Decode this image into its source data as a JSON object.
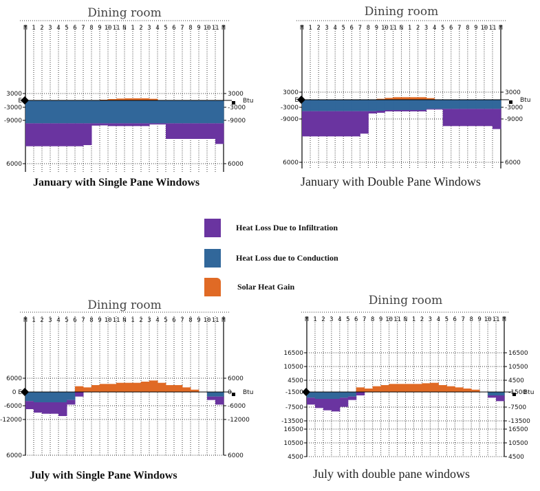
{
  "colors": {
    "infiltration": "#6a34a0",
    "conduction": "#31679a",
    "solar": "#e06a25",
    "axis": "#000000",
    "grid": "#333333"
  },
  "legend": {
    "items": [
      {
        "key": "infiltration",
        "label": "Heat Loss Due to Infiltration"
      },
      {
        "key": "conduction",
        "label": "Heat Loss due to Conduction"
      },
      {
        "key": "solar",
        "label": "Solar Heat Gain"
      }
    ]
  },
  "chart_data": [
    {
      "type": "bar",
      "stacked": true,
      "title": "Dining room",
      "caption": "January with Single Pane Windows",
      "categories": [
        "M",
        "1",
        "2",
        "3",
        "4",
        "5",
        "6",
        "7",
        "8",
        "9",
        "10",
        "11",
        "N",
        "1",
        "2",
        "3",
        "4",
        "5",
        "6",
        "7",
        "8",
        "9",
        "10",
        "11"
      ],
      "x_tick_labels": [
        "M",
        "1",
        "2",
        "3",
        "4",
        "5",
        "6",
        "7",
        "8",
        "9",
        "10",
        "11",
        "N",
        "1",
        "2",
        "3",
        "4",
        "5",
        "6",
        "7",
        "8",
        "9",
        "10",
        "11",
        "M"
      ],
      "y_tick_labels_left": [
        "3000",
        "E",
        "-3000",
        "-9000",
        "6000"
      ],
      "y_tick_labels_right": [
        "3000",
        "-3000",
        "-9000",
        "6000"
      ],
      "unit_label": "Btu",
      "ylim": [
        -21000,
        3000
      ],
      "series": [
        {
          "name": "Solar Heat Gain",
          "key": "solar",
          "values": [
            0,
            0,
            0,
            0,
            0,
            0,
            0,
            0,
            0,
            300,
            600,
            800,
            900,
            900,
            900,
            700,
            0,
            0,
            0,
            0,
            0,
            0,
            0,
            0
          ]
        },
        {
          "name": "Heat Loss due to Conduction",
          "key": "conduction",
          "values": [
            -10000,
            -10000,
            -10000,
            -10000,
            -10000,
            -10000,
            -10000,
            -10000,
            -10000,
            -10000,
            -10000,
            -10000,
            -10000,
            -10000,
            -10000,
            -10000,
            -10000,
            -10000,
            -10000,
            -10000,
            -10000,
            -10000,
            -10000,
            -10000
          ]
        },
        {
          "name": "Heat Loss Due to Infiltration",
          "key": "infiltration",
          "values": [
            -10000,
            -10000,
            -10000,
            -10000,
            -10000,
            -10000,
            -10000,
            -9500,
            -1000,
            -900,
            -1200,
            -1200,
            -1200,
            -1200,
            -1200,
            -500,
            -500,
            -6800,
            -6800,
            -6800,
            -6800,
            -6800,
            -6800,
            -9000
          ]
        }
      ]
    },
    {
      "type": "bar",
      "stacked": true,
      "title": "Dining room",
      "caption": "January with Double Pane Windows",
      "categories": [
        "M",
        "1",
        "2",
        "3",
        "4",
        "5",
        "6",
        "7",
        "8",
        "9",
        "10",
        "11",
        "N",
        "1",
        "2",
        "3",
        "4",
        "5",
        "6",
        "7",
        "8",
        "9",
        "10",
        "11"
      ],
      "x_tick_labels": [
        "M",
        "1",
        "2",
        "3",
        "4",
        "5",
        "6",
        "7",
        "8",
        "9",
        "10",
        "11",
        "N",
        "1",
        "2",
        "3",
        "4",
        "5",
        "6",
        "7",
        "8",
        "9",
        "10",
        "11",
        "M"
      ],
      "y_tick_labels_left": [
        "3000",
        "E",
        "-3000",
        "-9000",
        "6000"
      ],
      "y_tick_labels_right": [
        "3000",
        "-3000",
        "-9000",
        "6000"
      ],
      "unit_label": "Btu",
      "ylim": [
        -21000,
        3000
      ],
      "series": [
        {
          "name": "Solar Heat Gain",
          "key": "solar",
          "values": [
            0,
            0,
            0,
            0,
            0,
            0,
            0,
            0,
            0,
            400,
            800,
            1100,
            1100,
            1100,
            1100,
            700,
            0,
            0,
            0,
            0,
            0,
            0,
            0,
            0
          ]
        },
        {
          "name": "Heat Loss due to Conduction",
          "key": "conduction",
          "values": [
            -5000,
            -5000,
            -5000,
            -5000,
            -5000,
            -5000,
            -5000,
            -5000,
            -5000,
            -4800,
            -4500,
            -4500,
            -4500,
            -4500,
            -4500,
            -4000,
            -4000,
            -4000,
            -4000,
            -4000,
            -4000,
            -4000,
            -4000,
            -4000
          ]
        },
        {
          "name": "Heat Loss Due to Infiltration",
          "key": "infiltration",
          "values": [
            -11000,
            -11000,
            -11000,
            -11000,
            -11000,
            -11000,
            -11000,
            -9800,
            -1000,
            -900,
            -600,
            -600,
            -600,
            -600,
            -600,
            -300,
            -300,
            -7500,
            -7500,
            -7500,
            -7500,
            -7500,
            -7500,
            -8800
          ]
        }
      ]
    },
    {
      "type": "bar",
      "stacked": true,
      "title": "Dining room",
      "caption": "July with Single Pane Windows",
      "categories": [
        "M",
        "1",
        "2",
        "3",
        "4",
        "5",
        "6",
        "7",
        "8",
        "9",
        "10",
        "11",
        "N",
        "1",
        "2",
        "3",
        "4",
        "5",
        "6",
        "7",
        "8",
        "9",
        "10",
        "11"
      ],
      "x_tick_labels": [
        "M",
        "1",
        "2",
        "3",
        "4",
        "5",
        "6",
        "7",
        "8",
        "9",
        "10",
        "11",
        "N",
        "1",
        "2",
        "3",
        "4",
        "5",
        "6",
        "7",
        "8",
        "9",
        "10",
        "11",
        "M"
      ],
      "y_tick_labels_left": [
        "6000",
        "0 E",
        "-6000",
        "-12000",
        "6000"
      ],
      "y_tick_labels_right": [
        "6000",
        "0",
        "-6000",
        "-12000",
        "6000"
      ],
      "unit_label": "Btu",
      "ylim": [
        -30000,
        6000
      ],
      "series": [
        {
          "name": "Solar Heat Gain",
          "key": "solar",
          "values": [
            0,
            0,
            0,
            0,
            0,
            0,
            2500,
            2000,
            3000,
            3500,
            3500,
            4000,
            4000,
            4000,
            4500,
            5000,
            4000,
            3000,
            3000,
            2000,
            1000,
            0,
            0,
            0
          ]
        },
        {
          "name": "Heat Loss due to Conduction",
          "key": "conduction",
          "values": [
            -4000,
            -4500,
            -4500,
            -4500,
            -4500,
            -3500,
            0,
            0,
            0,
            0,
            0,
            0,
            0,
            0,
            0,
            0,
            0,
            0,
            0,
            0,
            0,
            0,
            -2000,
            -2000
          ]
        },
        {
          "name": "Heat Loss Due to Infiltration",
          "key": "infiltration",
          "values": [
            -3500,
            -4500,
            -5000,
            -5000,
            -6000,
            -2000,
            -2000,
            0,
            0,
            0,
            0,
            0,
            0,
            0,
            0,
            0,
            0,
            0,
            0,
            0,
            0,
            0,
            -1500,
            -3500
          ]
        }
      ]
    },
    {
      "type": "bar",
      "stacked": true,
      "title": "Dining room",
      "caption": "July with double pane windows",
      "categories": [
        "M",
        "1",
        "2",
        "3",
        "4",
        "5",
        "6",
        "7",
        "8",
        "9",
        "10",
        "11",
        "N",
        "1",
        "2",
        "3",
        "4",
        "5",
        "6",
        "7",
        "8",
        "9",
        "10",
        "11"
      ],
      "x_tick_labels": [
        "M",
        "1",
        "2",
        "3",
        "4",
        "5",
        "6",
        "7",
        "8",
        "9",
        "10",
        "11",
        "N",
        "1",
        "2",
        "3",
        "4",
        "5",
        "6",
        "7",
        "8",
        "9",
        "10",
        "11",
        "M"
      ],
      "y_tick_labels_left": [
        "16500",
        "10500",
        "4500",
        "-1500",
        "-7500",
        "-13500",
        "16500",
        "10500",
        "4500"
      ],
      "y_tick_labels_right": [
        "16500",
        "10500",
        "4500",
        "-1500",
        "-7500",
        "-13500",
        "16500",
        "10500",
        "4500"
      ],
      "unit_label": "Btu",
      "ylim": [
        -40500,
        22500
      ],
      "series": [
        {
          "name": "Solar Heat Gain",
          "key": "solar",
          "values": [
            0,
            0,
            0,
            0,
            0,
            0,
            2000,
            1500,
            2500,
            3000,
            3500,
            3500,
            3500,
            3500,
            3800,
            4000,
            3000,
            2500,
            2000,
            1500,
            1000,
            0,
            0,
            0
          ]
        },
        {
          "name": "Heat Loss due to Conduction",
          "key": "conduction",
          "values": [
            -2500,
            -3000,
            -3000,
            -3000,
            -2500,
            -2000,
            0,
            0,
            0,
            0,
            0,
            0,
            0,
            0,
            0,
            0,
            0,
            0,
            0,
            0,
            0,
            0,
            -1500,
            -1500
          ]
        },
        {
          "name": "Heat Loss Due to Infiltration",
          "key": "infiltration",
          "values": [
            -3000,
            -4000,
            -5000,
            -5500,
            -4000,
            -1500,
            -1500,
            0,
            0,
            0,
            0,
            0,
            0,
            0,
            0,
            0,
            0,
            0,
            0,
            0,
            0,
            0,
            -1000,
            -2500
          ]
        }
      ]
    }
  ]
}
